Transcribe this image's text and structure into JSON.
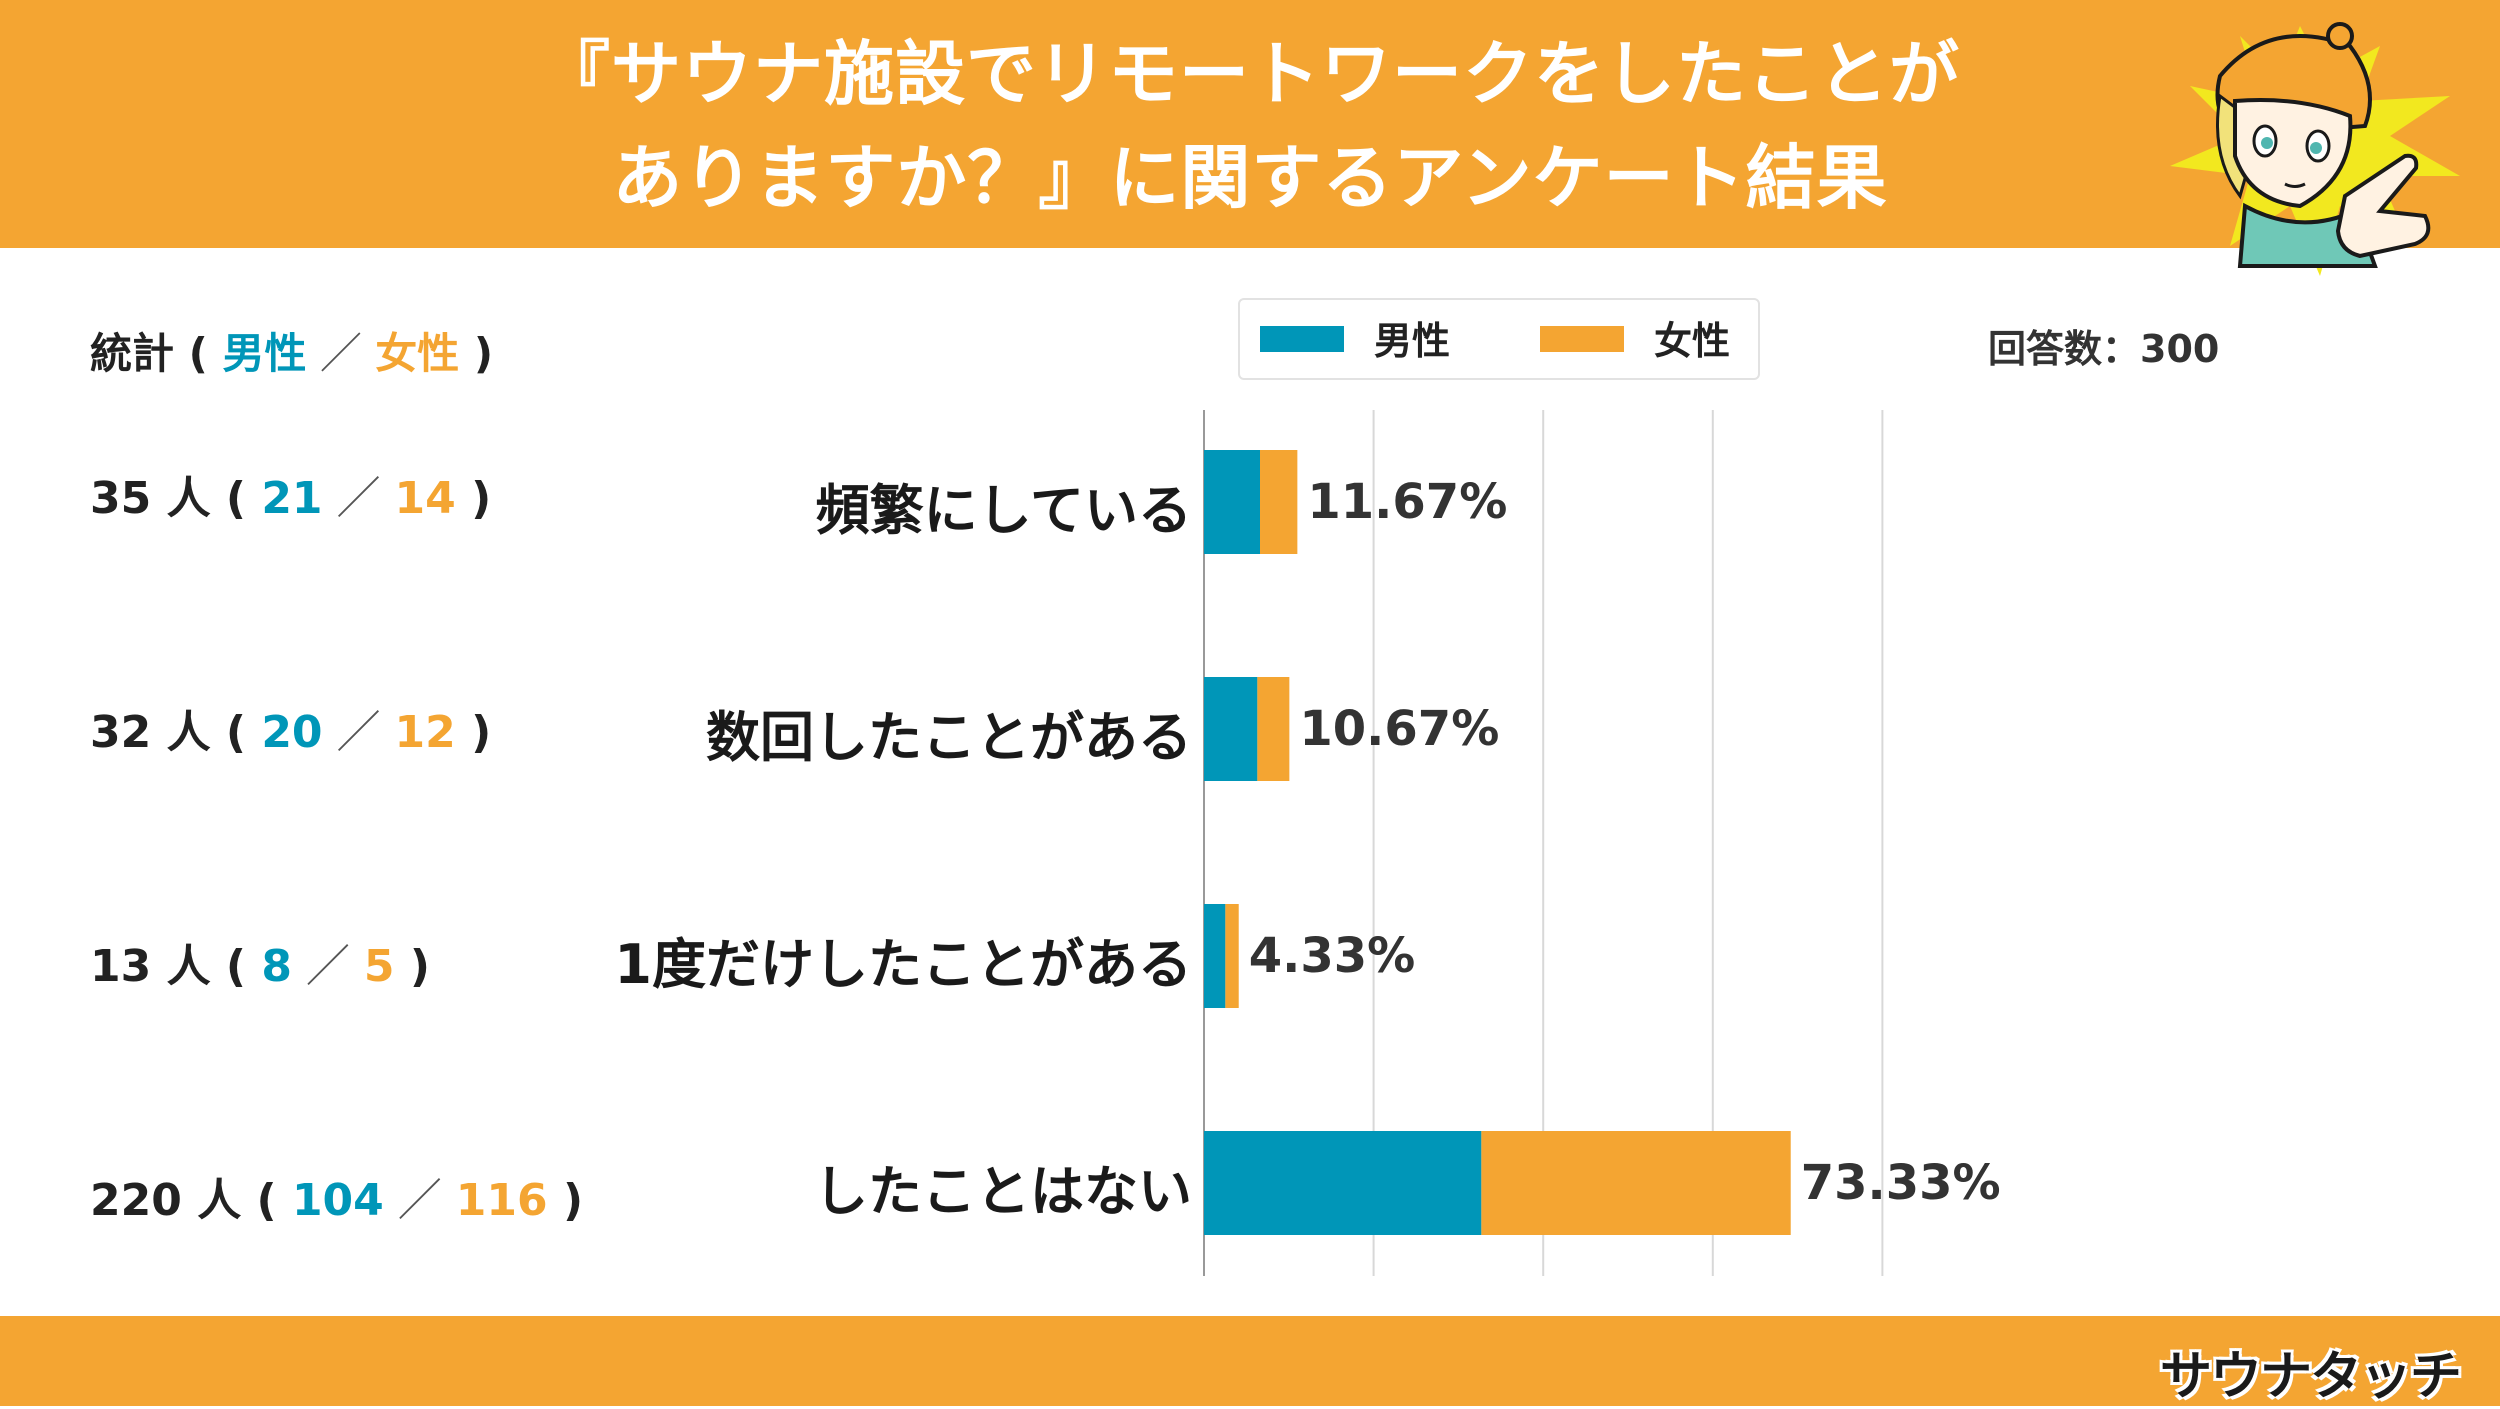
{
  "header": {
    "title_line1": "『サウナ施設でリモートワークをしたことが",
    "title_line2": "ありますか？』に関するアンケート結果"
  },
  "legend": {
    "male": "男性",
    "female": "女性"
  },
  "response_count": "回答数：300",
  "stats": {
    "label": "統計",
    "male": "男性",
    "female": "女性",
    "unit": "人",
    "rows": [
      {
        "total": "35",
        "male": "21",
        "female": "14"
      },
      {
        "total": "32",
        "male": "20",
        "female": "12"
      },
      {
        "total": "13",
        "male": "8",
        "female": "5"
      },
      {
        "total": "220",
        "male": "104",
        "female": "116"
      }
    ]
  },
  "colors": {
    "male": "#0096B8",
    "female": "#F4A532",
    "header": "#F4A532"
  },
  "footer": {
    "logo": "サウナタッチ"
  },
  "chart_data": {
    "type": "bar",
    "orientation": "horizontal",
    "stacked": true,
    "categories": [
      "頻繁にしている",
      "数回したことがある",
      "1度だけしたことがある",
      "したことはない"
    ],
    "series": [
      {
        "name": "男性",
        "values": [
          7.0,
          6.67,
          2.67,
          34.67
        ]
      },
      {
        "name": "女性",
        "values": [
          4.67,
          4.0,
          1.67,
          38.67
        ]
      }
    ],
    "totals_labels": [
      "11.67%",
      "10.67%",
      "4.33%",
      "73.33%"
    ],
    "xlim": [
      0,
      100
    ],
    "grid": true,
    "legend_position": "top"
  }
}
